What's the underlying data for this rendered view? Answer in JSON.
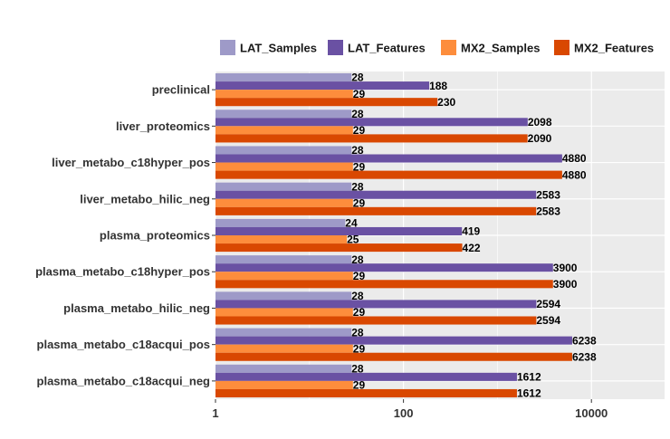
{
  "chart_data": {
    "type": "bar",
    "orientation": "horizontal",
    "x_scale": "log10",
    "xlim": [
      1,
      60000
    ],
    "x_ticks": [
      1,
      100,
      10000
    ],
    "x_tick_labels": [
      "1",
      "100",
      "10000"
    ],
    "grid": true,
    "legend_position": "top",
    "categories": [
      "preclinical",
      "liver_proteomics",
      "liver_metabo_c18hyper_pos",
      "liver_metabo_hilic_neg",
      "plasma_proteomics",
      "plasma_metabo_c18hyper_pos",
      "plasma_metabo_hilic_neg",
      "plasma_metabo_c18acqui_pos",
      "plasma_metabo_c18acqui_neg"
    ],
    "series": [
      {
        "name": "LAT_Samples",
        "color": "#9e9ac8",
        "values": [
          28,
          28,
          28,
          28,
          24,
          28,
          28,
          28,
          28
        ]
      },
      {
        "name": "LAT_Features",
        "color": "#6a51a3",
        "values": [
          188,
          2098,
          4880,
          2583,
          419,
          3900,
          2594,
          6238,
          1612
        ]
      },
      {
        "name": "MX2_Samples",
        "color": "#fd8d3c",
        "values": [
          29,
          29,
          29,
          29,
          25,
          29,
          29,
          29,
          29
        ]
      },
      {
        "name": "MX2_Features",
        "color": "#d94801",
        "values": [
          230,
          2090,
          4880,
          2583,
          422,
          3900,
          2594,
          6238,
          1612
        ]
      }
    ],
    "panel_color": "#ebebeb",
    "grid_color": "#ffffff"
  }
}
